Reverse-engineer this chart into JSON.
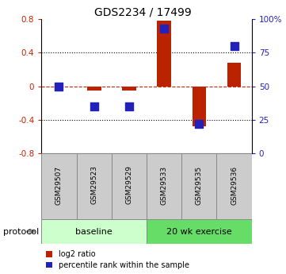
{
  "title": "GDS2234 / 17499",
  "samples": [
    "GSM29507",
    "GSM29523",
    "GSM29529",
    "GSM29533",
    "GSM29535",
    "GSM29536"
  ],
  "log2_ratio": [
    0.0,
    -0.05,
    -0.05,
    0.78,
    -0.48,
    0.28
  ],
  "percentile_rank": [
    50,
    35,
    35,
    93,
    22,
    80
  ],
  "ylim_left": [
    -0.8,
    0.8
  ],
  "ylim_right": [
    0,
    100
  ],
  "bar_color": "#bb2200",
  "point_color": "#2222bb",
  "baseline_label": "baseline",
  "exercise_label": "20 wk exercise",
  "protocol_label": "protocol",
  "legend_red": "log2 ratio",
  "legend_blue": "percentile rank within the sample",
  "baseline_color": "#ccffcc",
  "exercise_color": "#66dd66",
  "sample_box_color": "#cccccc",
  "tick_color_left": "#cc2200",
  "tick_color_right": "#2222bb",
  "bar_width": 0.4,
  "point_size": 55,
  "title_fontsize": 10,
  "ytick_fontsize": 7.5,
  "sample_fontsize": 6.5,
  "proto_fontsize": 8,
  "legend_fontsize": 7
}
